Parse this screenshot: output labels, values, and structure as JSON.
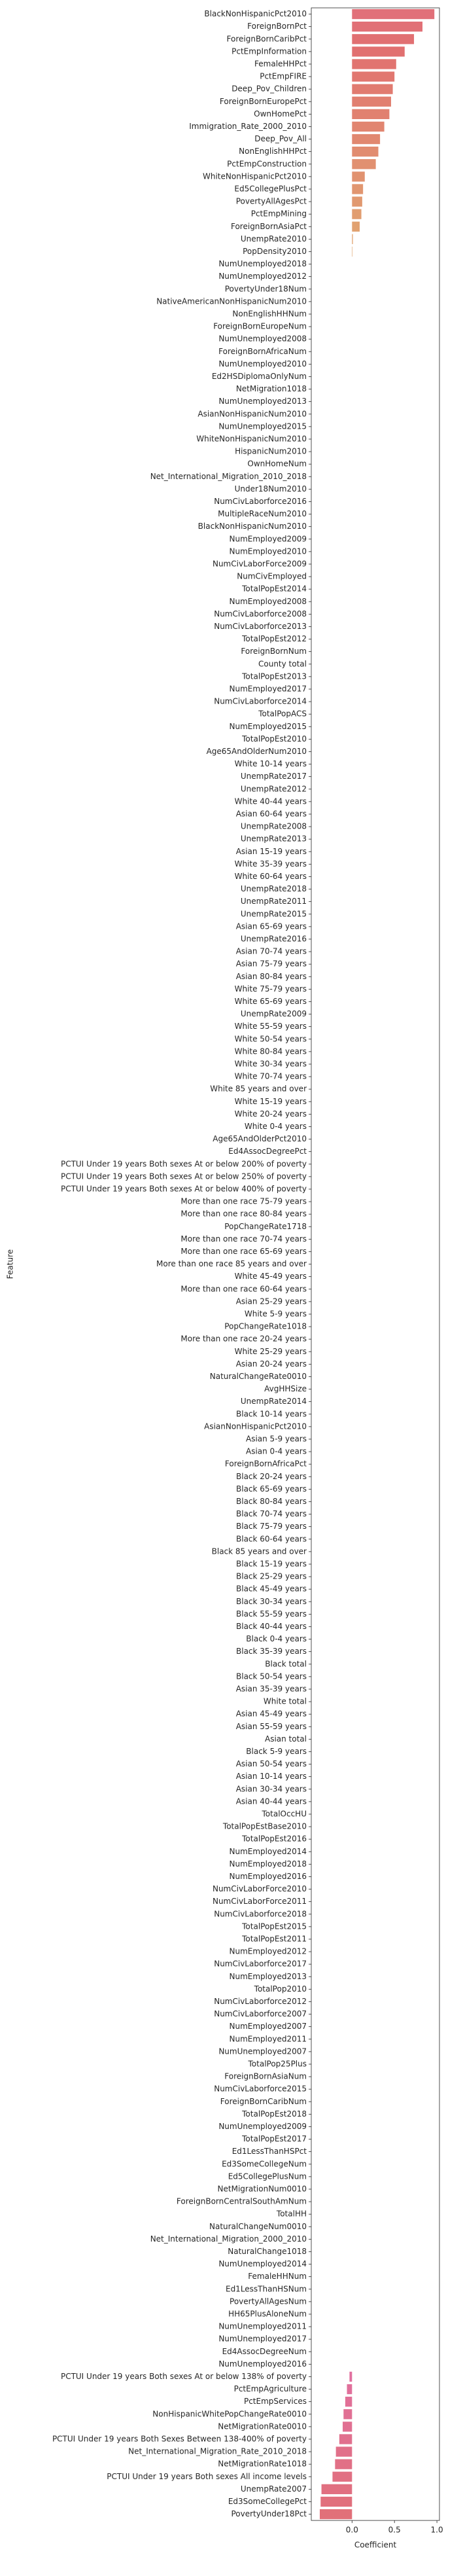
{
  "chart_data": {
    "type": "barh",
    "xlabel": "Coefficient",
    "ylabel": "Feature",
    "categories": [
      "BlackNonHispanicPct2010",
      "ForeignBornPct",
      "ForeignBornCaribPct",
      "PctEmpInformation",
      "FemaleHHPct",
      "PctEmpFIRE",
      "Deep_Pov_Children",
      "ForeignBornEuropePct",
      "OwnHomePct",
      "Immigration_Rate_2000_2010",
      "Deep_Pov_All",
      "NonEnglishHHPct",
      "PctEmpConstruction",
      "WhiteNonHispanicPct2010",
      "Ed5CollegePlusPct",
      "PovertyAllAgesPct",
      "PctEmpMining",
      "ForeignBornAsiaPct",
      "UnempRate2010",
      "PopDensity2010",
      "NumUnemployed2018",
      "NumUnemployed2012",
      "PovertyUnder18Num",
      "NativeAmericanNonHispanicNum2010",
      "NonEnglishHHNum",
      "ForeignBornEuropeNum",
      "NumUnemployed2008",
      "ForeignBornAfricaNum",
      "NumUnemployed2010",
      "Ed2HSDiplomaOnlyNum",
      "NetMigration1018",
      "NumUnemployed2013",
      "AsianNonHispanicNum2010",
      "NumUnemployed2015",
      "WhiteNonHispanicNum2010",
      "HispanicNum2010",
      "OwnHomeNum",
      "Net_International_Migration_2010_2018",
      "Under18Num2010",
      "NumCivLaborforce2016",
      "MultipleRaceNum2010",
      "BlackNonHispanicNum2010",
      "NumEmployed2009",
      "NumEmployed2010",
      "NumCivLaborForce2009",
      "NumCivEmployed",
      "TotalPopEst2014",
      "NumEmployed2008",
      "NumCivLaborforce2008",
      "NumCivLaborforce2013",
      "TotalPopEst2012",
      "ForeignBornNum",
      "County total",
      "TotalPopEst2013",
      "NumEmployed2017",
      "NumCivLaborforce2014",
      "TotalPopACS",
      "NumEmployed2015",
      "TotalPopEst2010",
      "Age65AndOlderNum2010",
      "White 10-14 years",
      "UnempRate2017",
      "UnempRate2012",
      "White 40-44 years",
      "Asian 60-64 years",
      "UnempRate2008",
      "UnempRate2013",
      "Asian 15-19 years",
      "White 35-39 years",
      "White 60-64 years",
      "UnempRate2018",
      "UnempRate2011",
      "UnempRate2015",
      "Asian 65-69 years",
      "UnempRate2016",
      "Asian 70-74 years",
      "Asian 75-79 years",
      "Asian 80-84 years",
      "White 75-79 years",
      "White 65-69 years",
      "UnempRate2009",
      "White 55-59 years",
      "White 50-54 years",
      "White 80-84 years",
      "White 30-34 years",
      "White 70-74 years",
      "White 85 years and over",
      "White 15-19 years",
      "White 20-24 years",
      "White 0-4 years",
      "Age65AndOlderPct2010",
      "Ed4AssocDegreePct",
      "PCTUI Under 19 years Both sexes At or below 200% of poverty",
      "PCTUI Under 19 years Both sexes At or below 250% of poverty",
      "PCTUI Under 19 years Both sexes At or below 400% of poverty",
      "More than one race 75-79 years",
      "More than one race 80-84 years",
      "PopChangeRate1718",
      "More than one race 70-74 years",
      "More than one race 65-69 years",
      "More than one race 85 years and over",
      "White 45-49 years",
      "More than one race 60-64 years",
      "Asian 25-29 years",
      "White 5-9 years",
      "PopChangeRate1018",
      "More than one race 20-24 years",
      "White 25-29 years",
      "Asian 20-24 years",
      "NaturalChangeRate0010",
      "AvgHHSize",
      "UnempRate2014",
      "Black 10-14 years",
      "AsianNonHispanicPct2010",
      "Asian 5-9 years",
      "Asian 0-4 years",
      "ForeignBornAfricaPct",
      "Black 20-24 years",
      "Black 65-69 years",
      "Black 80-84 years",
      "Black 70-74 years",
      "Black 75-79 years",
      "Black 60-64 years",
      "Black 85 years and over",
      "Black 15-19 years",
      "Black 25-29 years",
      "Black 45-49 years",
      "Black 30-34 years",
      "Black 55-59 years",
      "Black 40-44 years",
      "Black 0-4 years",
      "Black 35-39 years",
      "Black total",
      "Black 50-54 years",
      "Asian 35-39 years",
      "White total",
      "Asian 45-49 years",
      "Asian 55-59 years",
      "Asian total",
      "Black 5-9 years",
      "Asian 50-54 years",
      "Asian 10-14 years",
      "Asian 30-34 years",
      "Asian 40-44 years",
      "TotalOccHU",
      "TotalPopEstBase2010",
      "TotalPopEst2016",
      "NumEmployed2014",
      "NumEmployed2018",
      "NumEmployed2016",
      "NumCivLaborForce2010",
      "NumCivLaborForce2011",
      "NumCivLaborforce2018",
      "TotalPopEst2015",
      "TotalPopEst2011",
      "NumEmployed2012",
      "NumCivLaborforce2017",
      "NumEmployed2013",
      "TotalPop2010",
      "NumCivLaborforce2012",
      "NumCivLaborforce2007",
      "NumEmployed2007",
      "NumEmployed2011",
      "NumUnemployed2007",
      "TotalPop25Plus",
      "ForeignBornAsiaNum",
      "NumCivLaborforce2015",
      "ForeignBornCaribNum",
      "TotalPopEst2018",
      "NumUnemployed2009",
      "TotalPopEst2017",
      "Ed1LessThanHSPct",
      "Ed3SomeCollegeNum",
      "Ed5CollegePlusNum",
      "NetMigrationNum0010",
      "ForeignBornCentralSouthAmNum",
      "TotalHH",
      "NaturalChangeNum0010",
      "Net_International_Migration_2000_2010",
      "NaturalChange1018",
      "NumUnemployed2014",
      "FemaleHHNum",
      "Ed1LessThanHSNum",
      "PovertyAllAgesNum",
      "HH65PlusAloneNum",
      "NumUnemployed2011",
      "NumUnemployed2017",
      "Ed4AssocDegreeNum",
      "NumUnemployed2016",
      "PCTUI Under 19 years Both sexes At or below 138% of poverty",
      "PctEmpAgriculture",
      "PctEmpServices",
      "NonHispanicWhitePopChangeRate0010",
      "NetMigrationRate0010",
      "PCTUI Under 19 years Both Sexes Between 138-400% of poverty",
      "Net_International_Migration_Rate_2010_2018",
      "NetMigrationRate1018",
      "PCTUI Under 19 years Both sexes All income levels",
      "UnempRate2007",
      "Ed3SomeCollegePct",
      "PovertyUnder18Pct"
    ],
    "values": [
      0.97,
      0.83,
      0.73,
      0.62,
      0.52,
      0.5,
      0.48,
      0.46,
      0.44,
      0.38,
      0.33,
      0.31,
      0.28,
      0.15,
      0.13,
      0.12,
      0.11,
      0.09,
      0.01,
      0.005,
      0,
      0,
      0,
      0,
      0,
      0,
      0,
      0,
      0,
      0,
      0,
      0,
      0,
      0,
      0,
      0,
      0,
      0,
      0,
      0,
      0,
      0,
      0,
      0,
      0,
      0,
      0,
      0,
      0,
      0,
      0,
      0,
      0,
      0,
      0,
      0,
      0,
      0,
      0,
      0,
      0,
      0,
      0,
      0,
      0,
      0,
      0,
      0,
      0,
      0,
      0,
      0,
      0,
      0,
      0,
      0,
      0,
      0,
      0,
      0,
      0,
      0,
      0,
      0,
      0,
      0,
      0,
      0,
      0,
      0,
      0,
      0,
      0,
      0,
      0,
      0,
      0,
      0,
      0,
      0,
      0,
      0,
      0,
      0,
      0,
      0,
      0,
      0,
      0,
      0,
      0,
      0,
      0,
      0,
      0,
      0,
      0,
      0,
      0,
      0,
      0,
      0,
      0,
      0,
      0,
      0,
      0,
      0,
      0,
      0,
      0,
      0,
      0,
      0,
      0,
      0,
      0,
      0,
      0,
      0,
      0,
      0,
      0,
      0,
      0,
      0,
      0,
      0,
      0,
      0,
      0,
      0,
      0,
      0,
      0,
      0,
      0,
      0,
      0,
      0,
      0,
      0,
      0,
      0,
      0,
      0,
      0,
      0,
      0,
      0,
      0,
      0,
      0,
      0,
      0,
      0,
      0,
      0,
      0,
      0,
      0,
      0,
      0,
      0,
      0,
      0,
      0,
      0,
      0,
      -0.03,
      -0.06,
      -0.08,
      -0.1,
      -0.11,
      -0.15,
      -0.19,
      -0.2,
      -0.23,
      -0.36,
      -0.37,
      -0.38
    ],
    "colors": [
      "hsl(355,65%,66%)",
      "hsl(357,65%,66%)",
      "hsl(359,65%,66%)",
      "hsl(0,65%,66%)",
      "hsl(2,65%,66%)",
      "hsl(4,65%,66%)",
      "hsl(6,65%,66%)",
      "hsl(8,65%,66%)",
      "hsl(9,65%,66%)",
      "hsl(11,65%,66%)",
      "hsl(13,65%,66%)",
      "hsl(15,65%,66%)",
      "hsl(17,65%,66%)",
      "hsl(18,65%,66%)",
      "hsl(20,65%,66%)",
      "hsl(22,65%,66%)",
      "hsl(24,65%,66%)",
      "hsl(26,65%,66%)",
      "hsl(27,65%,66%)",
      "hsl(29,65%,66%)",
      "hsl(31,65%,66%)",
      "hsl(33,65%,66%)",
      "hsl(35,65%,66%)",
      "hsl(36,65%,66%)",
      "hsl(38,65%,66%)",
      "hsl(40,65%,66%)",
      "hsl(42,65%,66%)",
      "hsl(44,65%,66%)",
      "hsl(45,65%,66%)",
      "hsl(47,65%,66%)",
      "hsl(49,65%,66%)",
      "hsl(51,65%,66%)",
      "hsl(53,65%,66%)",
      "hsl(54,65%,66%)",
      "hsl(56,65%,66%)",
      "hsl(58,65%,66%)",
      "hsl(60,65%,66%)",
      "hsl(62,65%,66%)",
      "hsl(63,65%,66%)",
      "hsl(65,65%,66%)",
      "hsl(67,65%,66%)",
      "hsl(69,65%,66%)",
      "hsl(71,65%,66%)",
      "hsl(72,65%,66%)",
      "hsl(74,65%,66%)",
      "hsl(76,65%,66%)",
      "hsl(78,65%,66%)",
      "hsl(80,65%,66%)",
      "hsl(81,65%,66%)",
      "hsl(83,65%,66%)",
      "hsl(85,65%,66%)",
      "hsl(87,65%,66%)",
      "hsl(89,65%,66%)",
      "hsl(90,65%,66%)",
      "hsl(92,65%,66%)",
      "hsl(94,65%,66%)",
      "hsl(96,65%,66%)",
      "hsl(98,65%,66%)",
      "hsl(99,65%,66%)",
      "hsl(101,65%,66%)",
      "hsl(103,65%,66%)",
      "hsl(105,65%,66%)",
      "hsl(107,65%,66%)",
      "hsl(108,65%,66%)",
      "hsl(110,65%,66%)",
      "hsl(112,65%,66%)",
      "hsl(114,65%,66%)",
      "hsl(116,65%,66%)",
      "hsl(117,65%,66%)",
      "hsl(119,65%,66%)",
      "hsl(121,65%,66%)",
      "hsl(123,65%,66%)",
      "hsl(125,65%,66%)",
      "hsl(126,65%,66%)",
      "hsl(128,65%,66%)",
      "hsl(130,65%,66%)",
      "hsl(132,65%,66%)",
      "hsl(134,65%,66%)",
      "hsl(135,65%,66%)",
      "hsl(137,65%,66%)",
      "hsl(139,65%,66%)",
      "hsl(141,65%,66%)",
      "hsl(143,65%,66%)",
      "hsl(144,65%,66%)",
      "hsl(146,65%,66%)",
      "hsl(148,65%,66%)",
      "hsl(150,65%,66%)",
      "hsl(152,65%,66%)",
      "hsl(153,65%,66%)",
      "hsl(155,65%,66%)",
      "hsl(157,65%,66%)",
      "hsl(159,65%,66%)",
      "hsl(161,65%,66%)",
      "hsl(162,65%,66%)",
      "hsl(164,65%,66%)",
      "hsl(166,65%,66%)",
      "hsl(168,65%,66%)",
      "hsl(170,65%,66%)",
      "hsl(171,65%,66%)",
      "hsl(173,65%,66%)",
      "hsl(175,65%,66%)",
      "hsl(177,65%,66%)",
      "hsl(179,65%,66%)",
      "hsl(180,65%,66%)",
      "hsl(182,65%,66%)",
      "hsl(184,65%,66%)",
      "hsl(186,65%,66%)",
      "hsl(188,65%,66%)",
      "hsl(189,65%,66%)",
      "hsl(191,65%,66%)",
      "hsl(193,65%,66%)",
      "hsl(195,65%,66%)",
      "hsl(197,65%,66%)",
      "hsl(198,65%,66%)",
      "hsl(200,65%,66%)",
      "hsl(202,65%,66%)",
      "hsl(204,65%,66%)",
      "hsl(206,65%,66%)",
      "hsl(207,65%,66%)",
      "hsl(209,65%,66%)",
      "hsl(211,65%,66%)",
      "hsl(213,65%,66%)",
      "hsl(215,65%,66%)",
      "hsl(216,65%,66%)",
      "hsl(218,65%,66%)",
      "hsl(220,65%,66%)",
      "hsl(222,65%,66%)",
      "hsl(224,65%,66%)",
      "hsl(225,65%,66%)",
      "hsl(227,65%,66%)",
      "hsl(229,65%,66%)",
      "hsl(231,65%,66%)",
      "hsl(233,65%,66%)",
      "hsl(234,65%,66%)",
      "hsl(236,65%,66%)",
      "hsl(238,65%,66%)",
      "hsl(240,65%,66%)",
      "hsl(242,65%,66%)",
      "hsl(243,65%,66%)",
      "hsl(245,65%,66%)",
      "hsl(247,65%,66%)",
      "hsl(249,65%,66%)",
      "hsl(251,65%,66%)",
      "hsl(252,65%,66%)",
      "hsl(254,65%,66%)",
      "hsl(256,65%,66%)",
      "hsl(258,65%,66%)",
      "hsl(260,65%,66%)",
      "hsl(261,65%,66%)",
      "hsl(263,65%,66%)",
      "hsl(265,65%,66%)",
      "hsl(267,65%,66%)",
      "hsl(269,65%,66%)",
      "hsl(270,65%,66%)",
      "hsl(272,65%,66%)",
      "hsl(274,65%,66%)",
      "hsl(276,65%,66%)",
      "hsl(278,65%,66%)",
      "hsl(279,65%,66%)",
      "hsl(281,65%,66%)",
      "hsl(283,65%,66%)",
      "hsl(285,65%,66%)",
      "hsl(287,65%,66%)",
      "hsl(288,65%,66%)",
      "hsl(290,65%,66%)",
      "hsl(292,65%,66%)",
      "hsl(294,65%,66%)",
      "hsl(296,65%,66%)",
      "hsl(297,65%,66%)",
      "hsl(299,65%,66%)",
      "hsl(301,65%,66%)",
      "hsl(303,65%,66%)",
      "hsl(305,65%,66%)",
      "hsl(306,65%,66%)",
      "hsl(308,65%,66%)",
      "hsl(310,65%,66%)",
      "hsl(312,65%,66%)",
      "hsl(314,65%,66%)",
      "hsl(315,65%,66%)",
      "hsl(317,65%,66%)",
      "hsl(319,65%,66%)",
      "hsl(321,65%,66%)",
      "hsl(323,65%,66%)",
      "hsl(324,65%,66%)",
      "hsl(326,65%,66%)",
      "hsl(328,65%,66%)",
      "hsl(330,65%,66%)",
      "hsl(332,65%,66%)",
      "hsl(333,65%,66%)",
      "hsl(335,65%,66%)",
      "hsl(337,65%,66%)",
      "hsl(339,65%,66%)",
      "hsl(341,65%,66%)",
      "hsl(342,65%,66%)",
      "hsl(344,65%,66%)",
      "hsl(346,65%,66%)",
      "hsl(348,65%,66%)",
      "hsl(350,65%,66%)",
      "hsl(351,65%,66%)",
      "hsl(353,65%,66%)",
      "hsl(355,65%,66%)"
    ],
    "xlim": [
      -0.48,
      1.03
    ],
    "xticks": [
      {
        "value": 0,
        "label": "0.0"
      },
      0.5,
      {
        "value": 1,
        "label": "1.0"
      }
    ]
  }
}
